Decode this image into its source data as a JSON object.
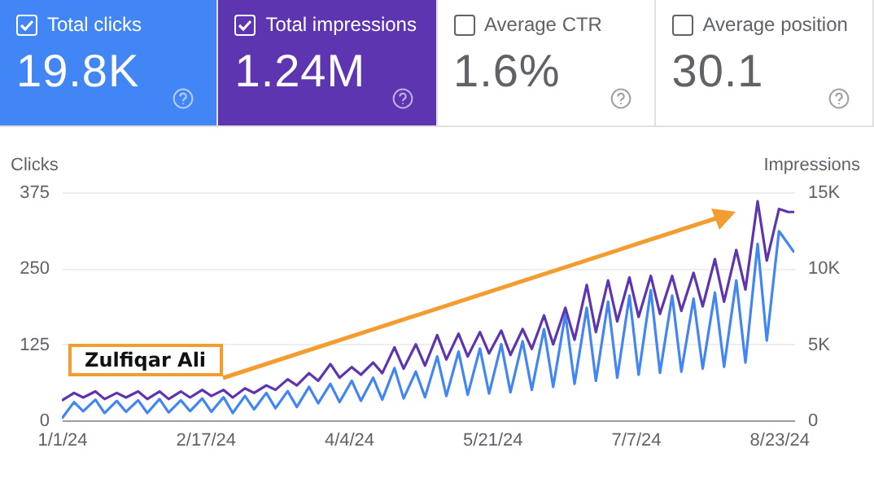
{
  "chart_data": [
    {
      "type": "other",
      "annotations": [
        "Total clicks",
        "19.8K",
        "Total impressions",
        "1.24M",
        "Average CTR",
        "1.6%",
        "Average position",
        "30.1"
      ]
    },
    {
      "type": "line",
      "ylabel": "Clicks",
      "y2label": "Impressions",
      "annotations": [
        "Zulfiqar Ali"
      ],
      "x": [
        "2024-01-01",
        "2024-01-05",
        "2024-01-08",
        "2024-01-12",
        "2024-01-15",
        "2024-01-19",
        "2024-01-22",
        "2024-01-26",
        "2024-01-29",
        "2024-02-02",
        "2024-02-05",
        "2024-02-09",
        "2024-02-12",
        "2024-02-16",
        "2024-02-19",
        "2024-02-23",
        "2024-02-26",
        "2024-03-01",
        "2024-03-04",
        "2024-03-08",
        "2024-03-11",
        "2024-03-15",
        "2024-03-18",
        "2024-03-22",
        "2024-03-25",
        "2024-03-29",
        "2024-04-01",
        "2024-04-05",
        "2024-04-08",
        "2024-04-12",
        "2024-04-15",
        "2024-04-19",
        "2024-04-22",
        "2024-04-26",
        "2024-04-29",
        "2024-05-03",
        "2024-05-06",
        "2024-05-10",
        "2024-05-13",
        "2024-05-17",
        "2024-05-20",
        "2024-05-24",
        "2024-05-27",
        "2024-05-31",
        "2024-06-03",
        "2024-06-07",
        "2024-06-10",
        "2024-06-14",
        "2024-06-17",
        "2024-06-21",
        "2024-06-24",
        "2024-06-28",
        "2024-07-01",
        "2024-07-05",
        "2024-07-08",
        "2024-07-12",
        "2024-07-15",
        "2024-07-19",
        "2024-07-22",
        "2024-07-26",
        "2024-07-29",
        "2024-08-02",
        "2024-08-05",
        "2024-08-09",
        "2024-08-12",
        "2024-08-16",
        "2024-08-19",
        "2024-08-23",
        "2024-08-26",
        "2024-08-28"
      ],
      "series": [
        {
          "color": "#4285f4",
          "values": [
            3,
            30,
            15,
            34,
            12,
            32,
            14,
            33,
            12,
            35,
            13,
            33,
            15,
            36,
            14,
            38,
            12,
            40,
            18,
            45,
            20,
            48,
            22,
            55,
            28,
            60,
            30,
            65,
            32,
            70,
            34,
            86,
            36,
            80,
            38,
            105,
            40,
            113,
            42,
            118,
            44,
            125,
            46,
            130,
            50,
            150,
            55,
            175,
            60,
            185,
            65,
            195,
            70,
            205,
            75,
            214,
            78,
            205,
            80,
            200,
            85,
            210,
            88,
            230,
            95,
            290,
            131,
            311,
            290,
            276
          ]
        },
        {
          "color": "#5e35b1",
          "axis": "y2",
          "values": [
            1300,
            1800,
            1500,
            1900,
            1400,
            1800,
            1500,
            1900,
            1400,
            1900,
            1400,
            1900,
            1500,
            2000,
            1600,
            2000,
            1500,
            2100,
            1800,
            2300,
            2000,
            2700,
            2300,
            3100,
            2600,
            3700,
            2800,
            3500,
            3000,
            3800,
            3100,
            4800,
            3400,
            5000,
            3600,
            5600,
            4000,
            5700,
            4200,
            5800,
            4400,
            5900,
            4300,
            6000,
            4700,
            6900,
            5000,
            7400,
            5300,
            8900,
            5800,
            9200,
            6500,
            9400,
            6800,
            9500,
            7000,
            9500,
            7200,
            9700,
            7500,
            10600,
            7800,
            11200,
            8600,
            14400,
            10500,
            13900,
            13700,
            13700
          ]
        }
      ],
      "xlim": [
        "2024-01-01",
        "2024-08-28"
      ],
      "xticks": [
        {
          "value": "2024-01-01",
          "label": "1/1/24"
        },
        {
          "value": "2024-02-17",
          "label": "2/17/24"
        },
        {
          "value": "2024-04-04",
          "label": "4/4/24"
        },
        {
          "value": "2024-05-21",
          "label": "5/21/24"
        },
        {
          "value": "2024-07-07",
          "label": "7/7/24"
        },
        {
          "value": "2024-08-23",
          "label": "8/23/24"
        }
      ],
      "ylim": [
        0,
        375
      ],
      "yticks": [
        0,
        125,
        250,
        375
      ],
      "y2lim": [
        0,
        15000
      ],
      "y2ticks": [
        0,
        {
          "value": 5000,
          "label": "5K"
        },
        {
          "value": 10000,
          "label": "10K"
        },
        {
          "value": 15000,
          "label": "15K"
        }
      ],
      "grid": "y",
      "line_style": "solid",
      "marker": "none"
    }
  ]
}
